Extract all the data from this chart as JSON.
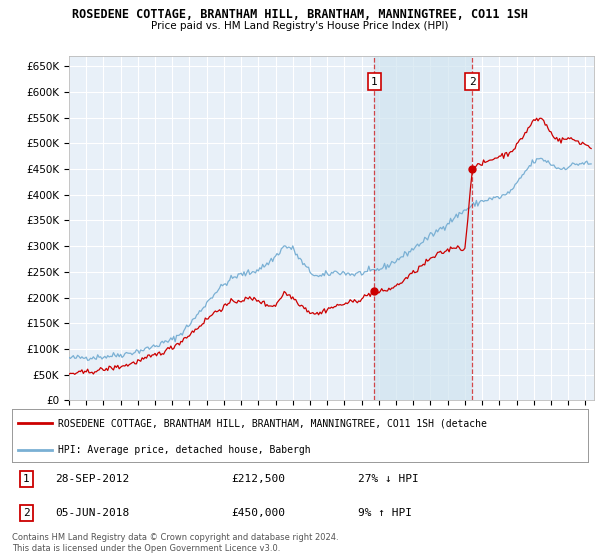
{
  "title1": "ROSEDENE COTTAGE, BRANTHAM HILL, BRANTHAM, MANNINGTREE, CO11 1SH",
  "title2": "Price paid vs. HM Land Registry's House Price Index (HPI)",
  "yticks": [
    0,
    50000,
    100000,
    150000,
    200000,
    250000,
    300000,
    350000,
    400000,
    450000,
    500000,
    550000,
    600000,
    650000
  ],
  "ytick_labels": [
    "£0",
    "£50K",
    "£100K",
    "£150K",
    "£200K",
    "£250K",
    "£300K",
    "£350K",
    "£400K",
    "£450K",
    "£500K",
    "£550K",
    "£600K",
    "£650K"
  ],
  "xlim_start": 1995.0,
  "xlim_end": 2025.5,
  "ylim_min": 0,
  "ylim_max": 670000,
  "transaction1_x": 2012.74,
  "transaction1_y": 212500,
  "transaction1_label": "1",
  "transaction2_x": 2018.42,
  "transaction2_y": 450000,
  "transaction2_label": "2",
  "vline1_x": 2012.74,
  "vline2_x": 2018.42,
  "legend_property_label": "ROSEDENE COTTAGE, BRANTHAM HILL, BRANTHAM, MANNINGTREE, CO11 1SH (detache",
  "legend_hpi_label": "HPI: Average price, detached house, Babergh",
  "annotation1_date": "28-SEP-2012",
  "annotation1_price": "£212,500",
  "annotation1_hpi": "27% ↓ HPI",
  "annotation2_date": "05-JUN-2018",
  "annotation2_price": "£450,000",
  "annotation2_hpi": "9% ↑ HPI",
  "footer": "Contains HM Land Registry data © Crown copyright and database right 2024.\nThis data is licensed under the Open Government Licence v3.0.",
  "property_color": "#cc0000",
  "hpi_color": "#7ab0d4",
  "shade_color": "#d0e4f0",
  "background_color": "#ffffff",
  "plot_bg_color": "#e8f0f8",
  "grid_color": "#ffffff",
  "vline_color": "#cc0000",
  "hpi_anchors": [
    [
      1995.0,
      82000
    ],
    [
      1995.5,
      83000
    ],
    [
      1996.0,
      83500
    ],
    [
      1996.5,
      84000
    ],
    [
      1997.0,
      85000
    ],
    [
      1997.5,
      87000
    ],
    [
      1998.0,
      89000
    ],
    [
      1998.5,
      92000
    ],
    [
      1999.0,
      96000
    ],
    [
      1999.5,
      100000
    ],
    [
      2000.0,
      106000
    ],
    [
      2000.5,
      112000
    ],
    [
      2001.0,
      118000
    ],
    [
      2001.5,
      130000
    ],
    [
      2002.0,
      148000
    ],
    [
      2002.5,
      168000
    ],
    [
      2003.0,
      190000
    ],
    [
      2003.5,
      210000
    ],
    [
      2004.0,
      225000
    ],
    [
      2004.5,
      238000
    ],
    [
      2005.0,
      245000
    ],
    [
      2005.5,
      248000
    ],
    [
      2006.0,
      255000
    ],
    [
      2006.5,
      265000
    ],
    [
      2007.0,
      280000
    ],
    [
      2007.5,
      300000
    ],
    [
      2008.0,
      295000
    ],
    [
      2008.5,
      270000
    ],
    [
      2009.0,
      250000
    ],
    [
      2009.5,
      240000
    ],
    [
      2010.0,
      245000
    ],
    [
      2010.5,
      250000
    ],
    [
      2011.0,
      248000
    ],
    [
      2011.5,
      245000
    ],
    [
      2012.0,
      248000
    ],
    [
      2012.5,
      250000
    ],
    [
      2013.0,
      255000
    ],
    [
      2013.5,
      262000
    ],
    [
      2014.0,
      272000
    ],
    [
      2014.5,
      283000
    ],
    [
      2015.0,
      295000
    ],
    [
      2015.5,
      308000
    ],
    [
      2016.0,
      320000
    ],
    [
      2016.5,
      332000
    ],
    [
      2017.0,
      345000
    ],
    [
      2017.5,
      358000
    ],
    [
      2018.0,
      370000
    ],
    [
      2018.5,
      380000
    ],
    [
      2019.0,
      388000
    ],
    [
      2019.5,
      392000
    ],
    [
      2020.0,
      395000
    ],
    [
      2020.5,
      402000
    ],
    [
      2021.0,
      420000
    ],
    [
      2021.5,
      445000
    ],
    [
      2022.0,
      465000
    ],
    [
      2022.5,
      470000
    ],
    [
      2023.0,
      460000
    ],
    [
      2023.5,
      450000
    ],
    [
      2024.0,
      455000
    ],
    [
      2024.5,
      460000
    ],
    [
      2025.0,
      462000
    ],
    [
      2025.3,
      458000
    ]
  ],
  "prop_anchors": [
    [
      1995.0,
      52000
    ],
    [
      1995.5,
      53000
    ],
    [
      1996.0,
      55000
    ],
    [
      1996.5,
      57000
    ],
    [
      1997.0,
      60000
    ],
    [
      1997.5,
      63000
    ],
    [
      1998.0,
      66000
    ],
    [
      1998.5,
      70000
    ],
    [
      1999.0,
      76000
    ],
    [
      1999.5,
      82000
    ],
    [
      2000.0,
      88000
    ],
    [
      2000.5,
      95000
    ],
    [
      2001.0,
      103000
    ],
    [
      2001.5,
      115000
    ],
    [
      2002.0,
      128000
    ],
    [
      2002.5,
      142000
    ],
    [
      2003.0,
      158000
    ],
    [
      2003.5,
      172000
    ],
    [
      2004.0,
      182000
    ],
    [
      2004.5,
      192000
    ],
    [
      2005.0,
      195000
    ],
    [
      2005.5,
      198000
    ],
    [
      2006.0,
      195000
    ],
    [
      2006.5,
      185000
    ],
    [
      2007.0,
      185000
    ],
    [
      2007.5,
      210000
    ],
    [
      2008.0,
      200000
    ],
    [
      2008.5,
      185000
    ],
    [
      2009.0,
      172000
    ],
    [
      2009.5,
      168000
    ],
    [
      2010.0,
      178000
    ],
    [
      2010.5,
      183000
    ],
    [
      2011.0,
      188000
    ],
    [
      2011.5,
      192000
    ],
    [
      2012.0,
      198000
    ],
    [
      2012.74,
      212500
    ],
    [
      2013.0,
      210000
    ],
    [
      2013.5,
      215000
    ],
    [
      2014.0,
      222000
    ],
    [
      2014.5,
      235000
    ],
    [
      2015.0,
      248000
    ],
    [
      2015.5,
      262000
    ],
    [
      2016.0,
      275000
    ],
    [
      2016.5,
      285000
    ],
    [
      2017.0,
      292000
    ],
    [
      2017.5,
      300000
    ],
    [
      2018.0,
      292000
    ],
    [
      2018.42,
      450000
    ],
    [
      2018.5,
      452000
    ],
    [
      2019.0,
      460000
    ],
    [
      2019.5,
      468000
    ],
    [
      2020.0,
      475000
    ],
    [
      2020.5,
      480000
    ],
    [
      2021.0,
      495000
    ],
    [
      2021.5,
      520000
    ],
    [
      2022.0,
      545000
    ],
    [
      2022.5,
      548000
    ],
    [
      2023.0,
      520000
    ],
    [
      2023.5,
      505000
    ],
    [
      2024.0,
      510000
    ],
    [
      2024.5,
      505000
    ],
    [
      2025.0,
      498000
    ],
    [
      2025.3,
      492000
    ]
  ]
}
